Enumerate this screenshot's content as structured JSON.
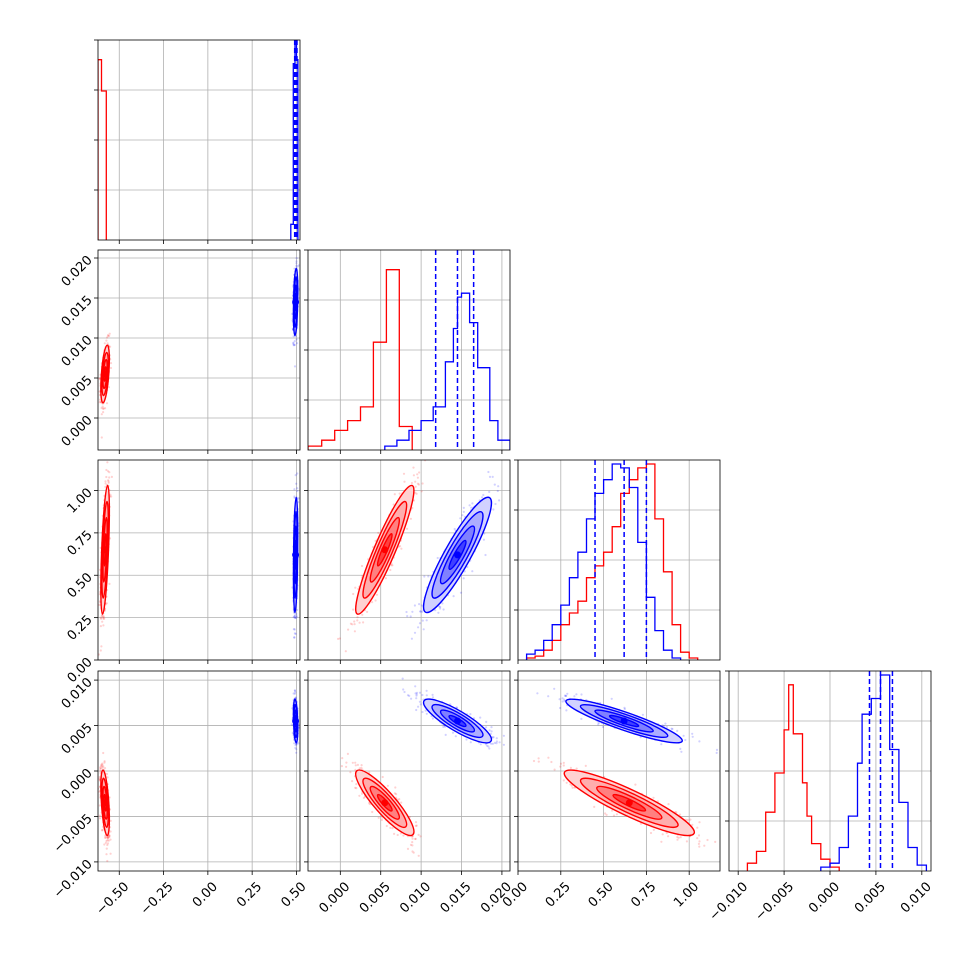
{
  "chart_data": {
    "type": "corner",
    "parameters": [
      "",
      "",
      "",
      ""
    ],
    "axis_ranges": [
      [
        -0.62,
        0.52
      ],
      [
        -0.004,
        0.021
      ],
      [
        0.0,
        1.18
      ],
      [
        -0.011,
        0.011
      ]
    ],
    "ticks": [
      {
        "values": [
          -0.5,
          -0.25,
          0.0,
          0.25,
          0.5
        ],
        "labels": [
          "−0.50",
          "−0.25",
          "0.00",
          "0.25",
          "0.50"
        ]
      },
      {
        "values": [
          0.0,
          0.005,
          0.01,
          0.015,
          0.02
        ],
        "labels": [
          "0.000",
          "0.005",
          "0.010",
          "0.015",
          "0.020"
        ]
      },
      {
        "values": [
          0.0,
          0.25,
          0.5,
          0.75,
          1.0
        ],
        "labels": [
          "0.00",
          "0.25",
          "0.50",
          "0.75",
          "1.00"
        ]
      },
      {
        "values": [
          -0.01,
          -0.005,
          0.0,
          0.005,
          0.01
        ],
        "labels": [
          "−0.010",
          "−0.005",
          "0.000",
          "0.005",
          "0.010"
        ]
      }
    ],
    "grid": true,
    "series": [
      {
        "color": "#ff0000",
        "means": [
          -0.58,
          0.0055,
          0.65,
          -0.0035
        ],
        "sigmas": [
          0.012,
          0.0018,
          0.19,
          0.0018
        ],
        "correlations": {
          "1-0": 0.5,
          "2-0": 0.6,
          "3-0": -0.5,
          "2-1": 0.92,
          "3-1": -0.88,
          "3-2": -0.9
        },
        "histograms": [
          {
            "edges": [
              -0.62,
              -0.6,
              -0.573
            ],
            "counts": [
              0.92,
              0.76
            ]
          },
          {
            "edges": [
              -0.004,
              -0.0023,
              -0.0007,
              0.0009,
              0.0025,
              0.0041,
              0.0057,
              0.0073,
              0.0089
            ],
            "counts": [
              0.02,
              0.05,
              0.1,
              0.15,
              0.22,
              0.55,
              0.92,
              0.12
            ]
          },
          {
            "edges": [
              0.05,
              0.1,
              0.15,
              0.2,
              0.25,
              0.3,
              0.35,
              0.4,
              0.45,
              0.5,
              0.55,
              0.6,
              0.65,
              0.7,
              0.75,
              0.8,
              0.85,
              0.9,
              0.95,
              1.0,
              1.05
            ],
            "counts": [
              0.01,
              0.02,
              0.05,
              0.1,
              0.18,
              0.24,
              0.3,
              0.42,
              0.48,
              0.55,
              0.68,
              0.85,
              0.92,
              0.98,
              1.0,
              0.72,
              0.45,
              0.18,
              0.04,
              0.01
            ]
          },
          {
            "edges": [
              -0.009,
              -0.008,
              -0.007,
              -0.006,
              -0.005,
              -0.0045,
              -0.004,
              -0.003,
              -0.0025,
              -0.002,
              -0.001,
              0.0,
              0.001
            ],
            "counts": [
              0.04,
              0.1,
              0.3,
              0.5,
              0.72,
              0.95,
              0.7,
              0.45,
              0.28,
              0.14,
              0.06,
              0.02
            ]
          }
        ],
        "quantiles": []
      },
      {
        "color": "#0000ff",
        "means": [
          0.495,
          0.0145,
          0.62,
          0.0055
        ],
        "sigmas": [
          0.006,
          0.0021,
          0.17,
          0.0012
        ],
        "correlations": {
          "1-0": 0.3,
          "2-0": 0.3,
          "3-0": -0.3,
          "2-1": 0.9,
          "3-1": -0.85,
          "3-2": -0.9
        },
        "histograms": [
          {
            "edges": [
              0.468,
              0.482,
              0.492,
              0.5,
              0.508
            ],
            "counts": [
              0.08,
              0.9,
              1.0,
              0.92
            ]
          },
          {
            "edges": [
              0.0055,
              0.007,
              0.0085,
              0.01,
              0.0115,
              0.013,
              0.014,
              0.0145,
              0.015,
              0.016,
              0.017,
              0.0185,
              0.0195,
              0.021
            ],
            "counts": [
              0.02,
              0.05,
              0.1,
              0.15,
              0.22,
              0.45,
              0.62,
              0.78,
              0.8,
              0.65,
              0.42,
              0.15,
              0.05
            ]
          },
          {
            "edges": [
              0.05,
              0.1,
              0.15,
              0.2,
              0.25,
              0.3,
              0.35,
              0.4,
              0.45,
              0.5,
              0.55,
              0.6,
              0.65,
              0.7,
              0.75,
              0.8,
              0.85,
              0.9,
              0.95
            ],
            "counts": [
              0.03,
              0.05,
              0.1,
              0.18,
              0.28,
              0.42,
              0.55,
              0.72,
              0.85,
              0.92,
              1.0,
              0.98,
              0.88,
              0.6,
              0.32,
              0.15,
              0.05,
              0.01
            ]
          },
          {
            "edges": [
              -0.001,
              0.0,
              0.001,
              0.002,
              0.003,
              0.0035,
              0.0045,
              0.0055,
              0.0065,
              0.0075,
              0.0085,
              0.0095,
              0.0105
            ],
            "counts": [
              0.02,
              0.04,
              0.12,
              0.28,
              0.55,
              0.8,
              0.88,
              1.0,
              0.62,
              0.35,
              0.12,
              0.03
            ]
          }
        ],
        "quantiles": [
          [
            0.49,
            0.497,
            0.503
          ],
          [
            0.0118,
            0.0145,
            0.0165
          ],
          [
            0.45,
            0.62,
            0.75
          ],
          [
            0.0043,
            0.0055,
            0.0068
          ]
        ]
      }
    ]
  }
}
